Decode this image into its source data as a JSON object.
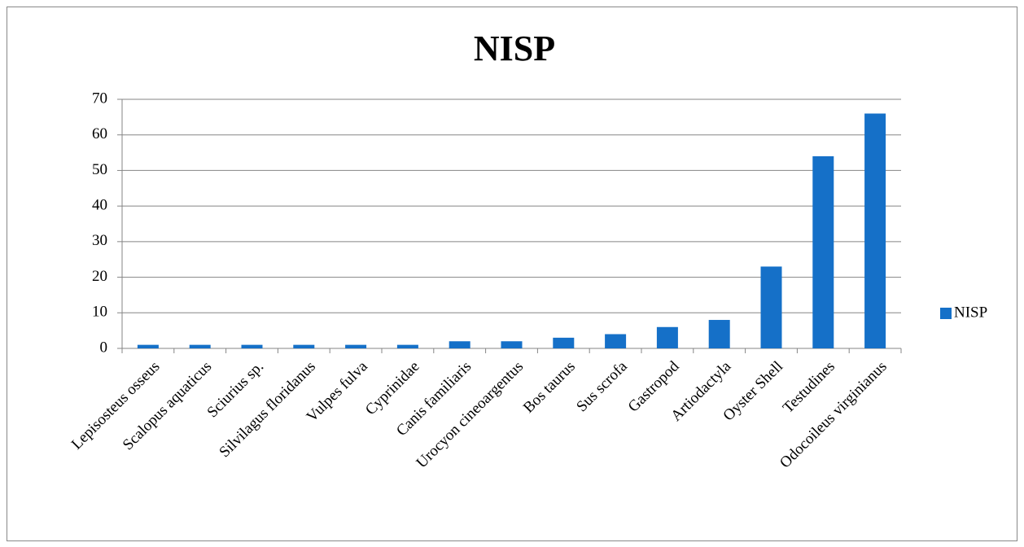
{
  "chart_data": {
    "type": "bar",
    "title": "NISP",
    "categories": [
      "Lepisosteus osseus",
      "Scalopus aquaticus",
      "Sciurius sp.",
      "Silvilagus floridanus",
      "Vulpes fulva",
      "Cyprinidae",
      "Canis familiaris",
      "Urocyon cineoargentus",
      "Bos taurus",
      "Sus scrofa",
      "Gastropod",
      "Artiodactyla",
      "Oyster Shell",
      "Testudines",
      "Odocoileus virginianus"
    ],
    "series": [
      {
        "name": "NISP",
        "color": "#1570c8",
        "values": [
          1,
          1,
          1,
          1,
          1,
          1,
          2,
          2,
          3,
          4,
          6,
          8,
          23,
          54,
          66
        ]
      }
    ],
    "ylim": [
      0,
      70
    ],
    "yticks": [
      0,
      10,
      20,
      30,
      40,
      50,
      60,
      70
    ],
    "grid": true,
    "legend": "right"
  }
}
